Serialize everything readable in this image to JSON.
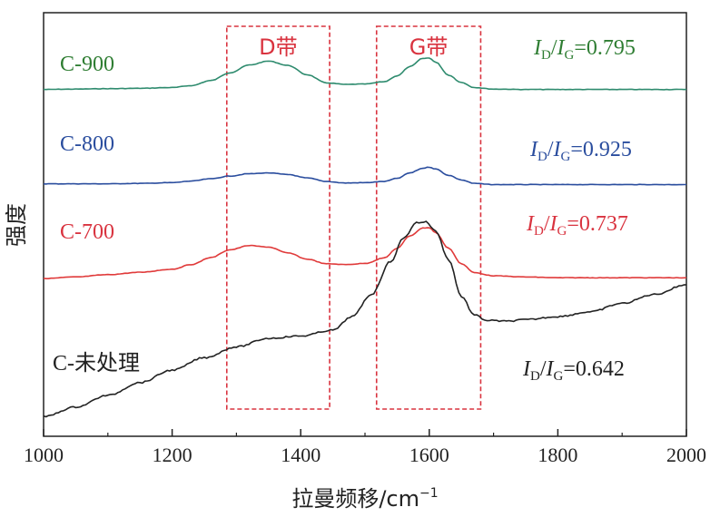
{
  "chart_data": {
    "type": "line",
    "xlabel": "拉曼频移/cm",
    "xlabel_sup": "−1",
    "ylabel": "强度",
    "xlim": [
      1000,
      2000
    ],
    "x_ticks": [
      "1000",
      "1200",
      "1400",
      "1600",
      "1800",
      "2000"
    ],
    "x_tick_values": [
      1000,
      1200,
      1400,
      1600,
      1800,
      2000
    ],
    "ylim": [
      0,
      100
    ],
    "bands": [
      {
        "label": "D带",
        "x_range": [
          1285,
          1445
        ]
      },
      {
        "label": "G带",
        "x_range": [
          1518,
          1680
        ]
      }
    ],
    "ratio_prefix": "I",
    "ratio_sub_d": "D",
    "ratio_sub_g": "G",
    "series": [
      {
        "name": "C-900",
        "color": "#2e8b6e",
        "label_color": "#2e7d32",
        "ratio": "=0.795",
        "x": [
          1000,
          1050,
          1100,
          1150,
          1200,
          1230,
          1260,
          1290,
          1320,
          1350,
          1380,
          1410,
          1440,
          1470,
          1500,
          1530,
          1550,
          1570,
          1590,
          1600,
          1610,
          1630,
          1650,
          1670,
          1700,
          1750,
          1800,
          1850,
          1900,
          1950,
          2000
        ],
        "y": [
          86.3,
          86.4,
          86.5,
          86.6,
          86.8,
          87.3,
          88.6,
          90.6,
          92.6,
          93.6,
          92.5,
          90.1,
          88.0,
          87.6,
          87.7,
          88.3,
          89.8,
          92.2,
          94.3,
          94.4,
          93.3,
          90.0,
          88.1,
          86.8,
          86.4,
          86.3,
          86.3,
          86.3,
          86.3,
          86.3,
          86.3
        ]
      },
      {
        "name": "C-800",
        "color": "#2a4d9e",
        "label_color": "#2a4d9e",
        "ratio": "=0.925",
        "x": [
          1000,
          1050,
          1100,
          1150,
          1200,
          1230,
          1260,
          1290,
          1320,
          1350,
          1380,
          1410,
          1440,
          1470,
          1500,
          1530,
          1550,
          1570,
          1590,
          1600,
          1610,
          1630,
          1650,
          1670,
          1700,
          1750,
          1800,
          1850,
          1900,
          1950,
          2000
        ],
        "y": [
          62.0,
          62.0,
          62.0,
          62.1,
          62.3,
          62.7,
          63.3,
          64.0,
          64.6,
          64.8,
          64.4,
          63.5,
          62.6,
          62.2,
          62.3,
          62.6,
          63.4,
          64.8,
          66.0,
          66.3,
          65.8,
          64.2,
          63.0,
          62.1,
          61.8,
          61.8,
          61.8,
          61.8,
          61.8,
          61.8,
          61.8
        ]
      },
      {
        "name": "C-700",
        "color": "#e03a3a",
        "label_color": "#d9333f",
        "ratio": "=0.737",
        "x": [
          1000,
          1050,
          1100,
          1150,
          1200,
          1230,
          1260,
          1290,
          1320,
          1350,
          1380,
          1410,
          1440,
          1470,
          1500,
          1530,
          1550,
          1570,
          1590,
          1600,
          1610,
          1630,
          1650,
          1670,
          1700,
          1750,
          1800,
          1850,
          1900,
          1950,
          2000
        ],
        "y": [
          37.6,
          38.0,
          38.6,
          39.2,
          40.0,
          41.2,
          43.0,
          45.0,
          46.1,
          45.7,
          44.2,
          42.6,
          41.4,
          41.2,
          41.5,
          42.9,
          45.4,
          48.6,
          50.6,
          50.7,
          49.4,
          45.4,
          41.4,
          39.1,
          38.3,
          38.0,
          37.8,
          37.8,
          37.8,
          37.8,
          37.8
        ]
      },
      {
        "name": "C-未处理",
        "color": "#222222",
        "label_color": "#222222",
        "ratio": "=0.642",
        "x": [
          1000,
          1050,
          1100,
          1150,
          1200,
          1250,
          1300,
          1350,
          1400,
          1450,
          1480,
          1510,
          1540,
          1560,
          1580,
          1595,
          1610,
          1630,
          1650,
          1670,
          1690,
          1720,
          1750,
          1800,
          1850,
          1900,
          1950,
          2000
        ],
        "y": [
          2.0,
          4.5,
          7.5,
          10.8,
          14.0,
          17.2,
          20.0,
          22.2,
          22.8,
          24.3,
          27.8,
          33.5,
          42.0,
          48.0,
          52.0,
          52.2,
          49.8,
          42.5,
          33.0,
          28.2,
          26.8,
          26.6,
          27.0,
          27.8,
          29.0,
          31.2,
          33.5,
          36.0
        ]
      }
    ]
  }
}
